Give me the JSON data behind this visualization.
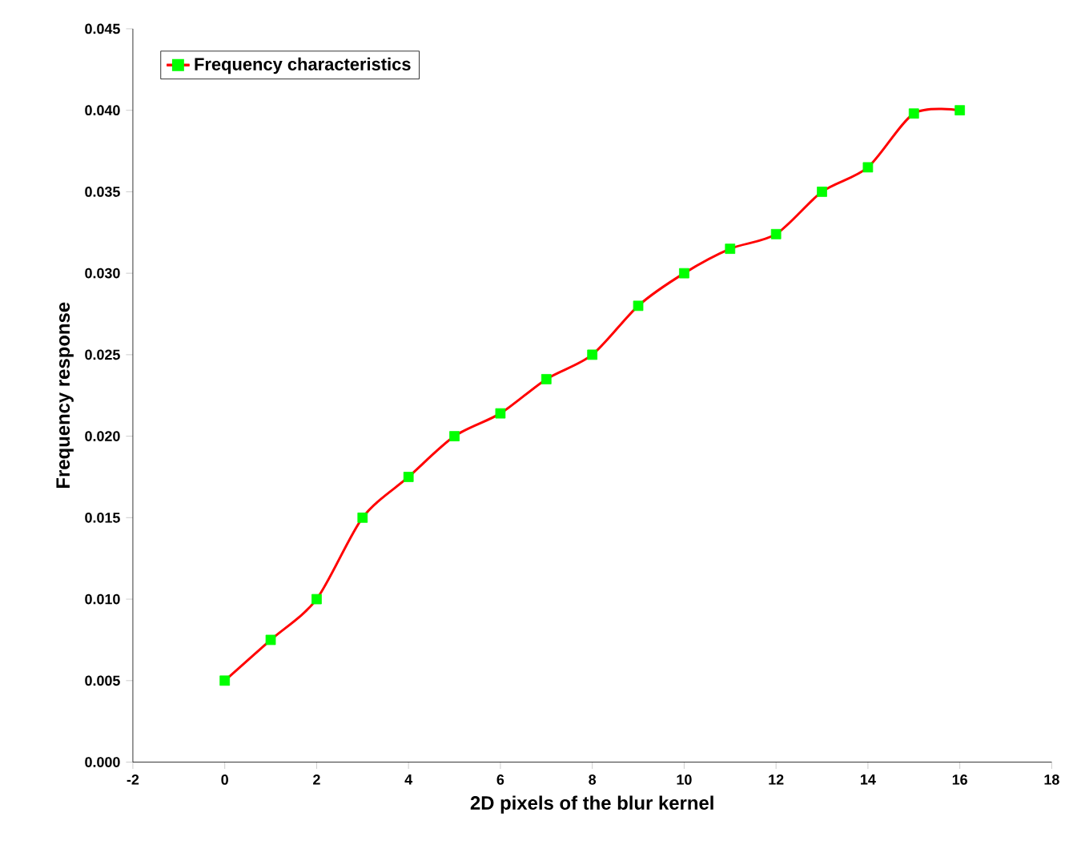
{
  "chart_data": {
    "type": "line",
    "xlabel": "2D pixels of the blur kernel",
    "ylabel": "Frequency response",
    "x": [
      0,
      1,
      2,
      3,
      4,
      5,
      6,
      7,
      8,
      9,
      10,
      11,
      12,
      13,
      14,
      15,
      16
    ],
    "series": [
      {
        "name": "Frequency characteristics",
        "color": "#ff0000",
        "colors": [
          "#00ff00",
          "#00ff00",
          "#00ff00",
          "#00ff00",
          "#00ff00",
          "#00ff00",
          "#00ff00",
          "#00ff00",
          "#00ff00",
          "#00ff00",
          "#00ff00",
          "#00ff00",
          "#00ff00",
          "#00ff00",
          "#00ff00",
          "#00ff00",
          "#00ff00"
        ],
        "values": [
          0.005,
          0.0075,
          0.01,
          0.015,
          0.0175,
          0.02,
          0.0214,
          0.0235,
          0.025,
          0.028,
          0.03,
          0.0315,
          0.0324,
          0.035,
          0.0365,
          0.0398,
          0.04
        ]
      }
    ],
    "xlim": [
      -2,
      18
    ],
    "xticks": [
      -2,
      0,
      2,
      4,
      6,
      8,
      10,
      12,
      14,
      16,
      18
    ],
    "ylim": [
      0,
      0.045
    ],
    "yticks": [
      {
        "value": 0,
        "label": "0.000"
      },
      {
        "value": 0.005,
        "label": "0.005"
      },
      {
        "value": 0.01,
        "label": "0.010"
      },
      {
        "value": 0.015,
        "label": "0.015"
      },
      {
        "value": 0.02,
        "label": "0.020"
      },
      {
        "value": 0.025,
        "label": "0.025"
      },
      {
        "value": 0.03,
        "label": "0.030"
      },
      {
        "value": 0.035,
        "label": "0.035"
      },
      {
        "value": 0.04,
        "label": "0.040"
      },
      {
        "value": 0.045,
        "label": "0.045"
      }
    ],
    "marker": "square",
    "line_style": "solid",
    "grid": false,
    "legend": "top left"
  }
}
